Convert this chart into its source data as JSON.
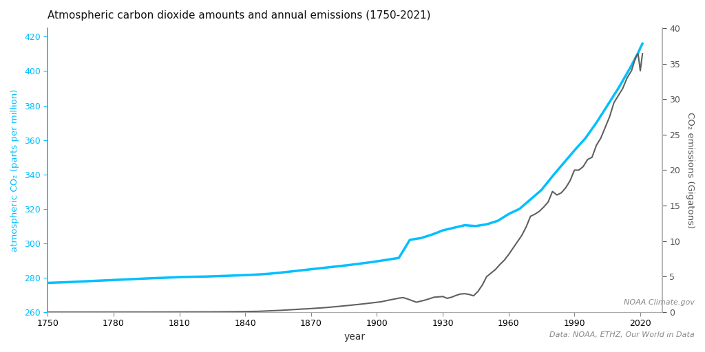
{
  "title": "Atmospheric carbon dioxide amounts and annual emissions (1750-2021)",
  "xlabel": "year",
  "ylabel_left": "atmospheric CO₂ (parts per million)",
  "ylabel_right": "CO₂ emissions (Gigatons)",
  "co2_color": "#00bfff",
  "emissions_color": "#606060",
  "background_color": "#ffffff",
  "xlim": [
    1750,
    2030
  ],
  "ylim_left": [
    260,
    425
  ],
  "ylim_right": [
    0,
    40
  ],
  "yticks_left": [
    260,
    280,
    300,
    320,
    340,
    360,
    380,
    400,
    420
  ],
  "yticks_right": [
    0,
    5,
    10,
    15,
    20,
    25,
    30,
    35,
    40
  ],
  "xticks": [
    1750,
    1780,
    1810,
    1840,
    1870,
    1900,
    1930,
    1960,
    1990,
    2020
  ],
  "footnote1": "NOAA Climate.gov",
  "footnote2": "Data: NOAA, ETHZ, Our World in Data",
  "co2_years": [
    1750,
    1755,
    1760,
    1765,
    1770,
    1775,
    1780,
    1785,
    1790,
    1795,
    1800,
    1805,
    1810,
    1815,
    1820,
    1825,
    1830,
    1835,
    1840,
    1845,
    1850,
    1855,
    1860,
    1865,
    1870,
    1875,
    1880,
    1885,
    1890,
    1895,
    1900,
    1905,
    1910,
    1915,
    1920,
    1925,
    1930,
    1935,
    1940,
    1945,
    1950,
    1955,
    1960,
    1965,
    1970,
    1975,
    1980,
    1985,
    1990,
    1995,
    2000,
    2005,
    2010,
    2015,
    2019,
    2020,
    2021
  ],
  "co2_values": [
    277.0,
    277.2,
    277.5,
    277.8,
    278.1,
    278.4,
    278.7,
    279.0,
    279.3,
    279.6,
    279.8,
    280.1,
    280.4,
    280.5,
    280.6,
    280.8,
    281.0,
    281.3,
    281.5,
    281.8,
    282.2,
    282.8,
    283.5,
    284.2,
    284.9,
    285.6,
    286.3,
    287.0,
    287.8,
    288.6,
    289.5,
    290.5,
    291.5,
    302.0,
    303.0,
    305.0,
    307.5,
    309.0,
    310.5,
    310.0,
    311.0,
    313.0,
    317.0,
    320.0,
    325.5,
    331.0,
    339.0,
    346.5,
    354.0,
    361.0,
    370.0,
    380.0,
    390.0,
    401.0,
    410.5,
    413.5,
    416.0
  ],
  "emissions_years": [
    1750,
    1751,
    1752,
    1753,
    1754,
    1755,
    1756,
    1757,
    1758,
    1759,
    1760,
    1762,
    1764,
    1766,
    1768,
    1770,
    1772,
    1774,
    1776,
    1778,
    1780,
    1782,
    1784,
    1786,
    1788,
    1790,
    1792,
    1794,
    1796,
    1798,
    1800,
    1802,
    1804,
    1806,
    1808,
    1810,
    1812,
    1814,
    1816,
    1818,
    1820,
    1822,
    1824,
    1826,
    1828,
    1830,
    1832,
    1834,
    1836,
    1838,
    1840,
    1842,
    1844,
    1846,
    1848,
    1850,
    1852,
    1854,
    1856,
    1858,
    1860,
    1862,
    1864,
    1866,
    1868,
    1870,
    1872,
    1874,
    1876,
    1878,
    1880,
    1882,
    1884,
    1886,
    1888,
    1890,
    1892,
    1894,
    1896,
    1898,
    1900,
    1902,
    1904,
    1906,
    1908,
    1910,
    1912,
    1914,
    1916,
    1918,
    1920,
    1922,
    1924,
    1926,
    1928,
    1930,
    1932,
    1934,
    1936,
    1938,
    1940,
    1942,
    1944,
    1946,
    1948,
    1950,
    1952,
    1954,
    1956,
    1958,
    1960,
    1962,
    1964,
    1966,
    1968,
    1970,
    1972,
    1974,
    1976,
    1978,
    1980,
    1982,
    1984,
    1986,
    1988,
    1990,
    1992,
    1994,
    1996,
    1998,
    2000,
    2002,
    2004,
    2006,
    2008,
    2010,
    2012,
    2014,
    2016,
    2018,
    2019,
    2020,
    2021
  ],
  "emissions_values": [
    0.003,
    0.003,
    0.003,
    0.003,
    0.003,
    0.004,
    0.004,
    0.004,
    0.004,
    0.004,
    0.004,
    0.005,
    0.005,
    0.005,
    0.005,
    0.006,
    0.006,
    0.006,
    0.007,
    0.007,
    0.008,
    0.008,
    0.009,
    0.009,
    0.01,
    0.011,
    0.011,
    0.012,
    0.013,
    0.014,
    0.016,
    0.016,
    0.017,
    0.018,
    0.02,
    0.022,
    0.023,
    0.025,
    0.027,
    0.029,
    0.032,
    0.034,
    0.037,
    0.04,
    0.043,
    0.047,
    0.052,
    0.058,
    0.065,
    0.073,
    0.082,
    0.092,
    0.103,
    0.115,
    0.14,
    0.16,
    0.185,
    0.215,
    0.25,
    0.285,
    0.32,
    0.36,
    0.4,
    0.44,
    0.46,
    0.5,
    0.54,
    0.58,
    0.63,
    0.68,
    0.73,
    0.79,
    0.85,
    0.9,
    0.97,
    1.04,
    1.1,
    1.17,
    1.24,
    1.31,
    1.38,
    1.46,
    1.6,
    1.72,
    1.84,
    1.97,
    2.05,
    1.85,
    1.62,
    1.4,
    1.55,
    1.7,
    1.9,
    2.1,
    2.15,
    2.2,
    1.95,
    2.1,
    2.35,
    2.55,
    2.6,
    2.5,
    2.3,
    2.9,
    3.8,
    5.0,
    5.5,
    6.0,
    6.7,
    7.3,
    8.1,
    9.0,
    9.9,
    10.8,
    12.0,
    13.5,
    13.8,
    14.2,
    14.8,
    15.5,
    17.0,
    16.5,
    16.8,
    17.5,
    18.5,
    20.0,
    20.0,
    20.5,
    21.5,
    21.8,
    23.5,
    24.5,
    26.0,
    27.5,
    29.5,
    30.5,
    31.5,
    33.0,
    34.0,
    36.0,
    36.4,
    34.0,
    36.4
  ]
}
